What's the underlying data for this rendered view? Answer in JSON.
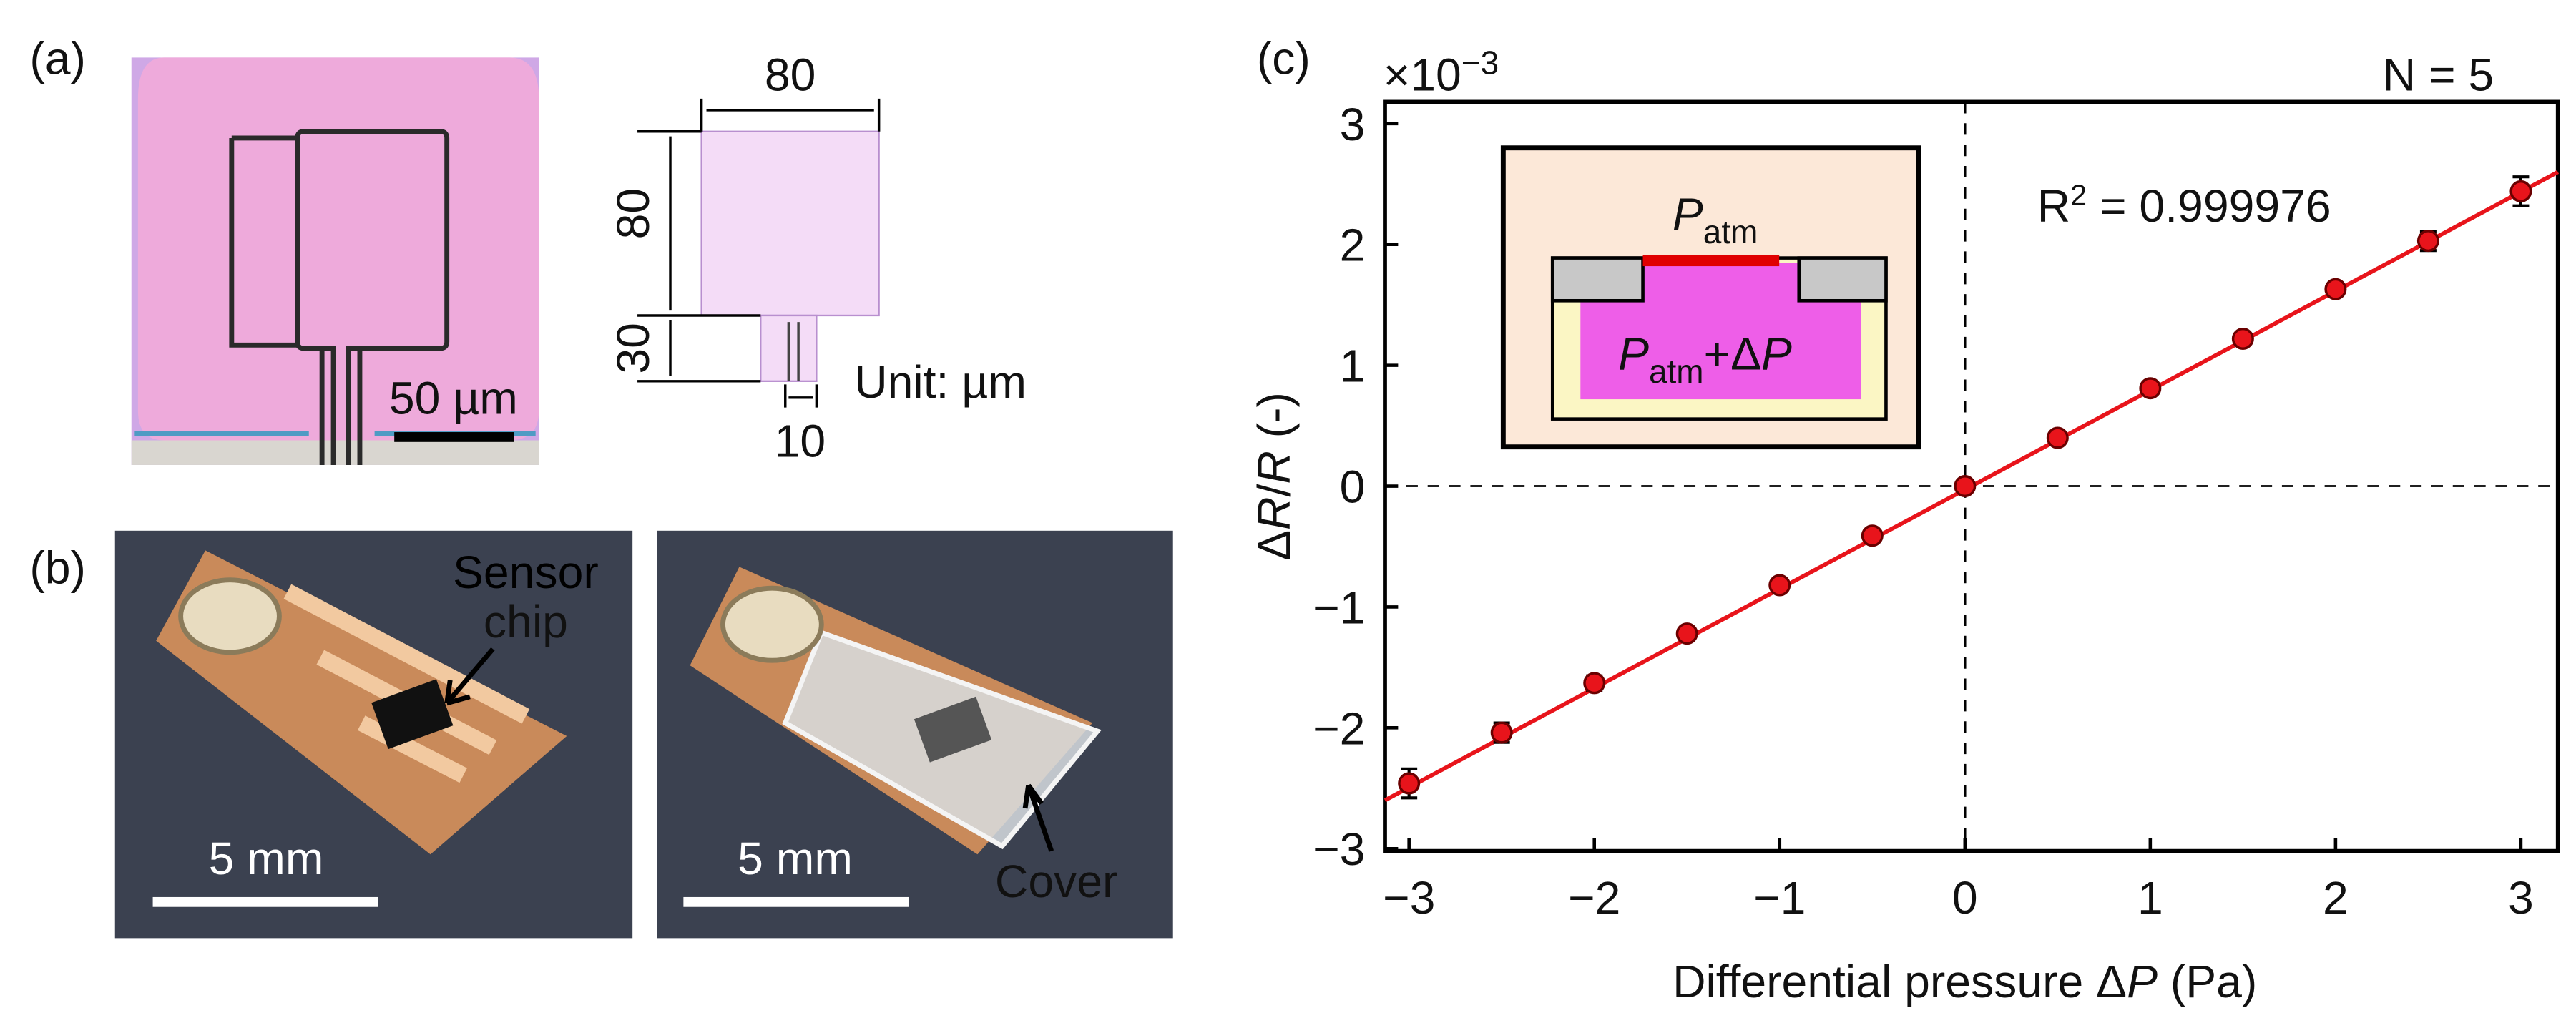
{
  "panel_a": {
    "label": "(a)",
    "scale_bar": "50 µm",
    "dim_width": "80",
    "dim_height": "80",
    "dim_stem": "30",
    "dim_slit": "10",
    "unit": "Unit: µm"
  },
  "panel_b": {
    "label": "(b)",
    "scale_bar_left": "5 mm",
    "scale_bar_right": "5 mm",
    "sensor_label": [
      "Sensor",
      "chip"
    ],
    "cover_label": "Cover"
  },
  "chart_data": {
    "type": "scatter",
    "panel_label": "(c)",
    "scale_label": [
      "×10",
      "−3"
    ],
    "annotation_n": "N = 5",
    "annotation_r2": [
      "R",
      "2",
      " = 0.999976"
    ],
    "inset_top": [
      "P",
      "atm"
    ],
    "inset_bottom": [
      "P",
      "atm",
      "+Δ",
      "P"
    ],
    "xlabel": [
      "Differential pressure Δ",
      "P",
      " (Pa)"
    ],
    "ylabel": [
      "Δ",
      "R",
      "/",
      "R",
      " (-)"
    ],
    "x": [
      -3,
      -2.5,
      -2,
      -1.5,
      -1,
      -0.5,
      0,
      0.5,
      1,
      1.5,
      2,
      2.5,
      3
    ],
    "series": [
      {
        "color": "#e8141b",
        "values": [
          -2.46,
          -2.04,
          -1.63,
          -1.22,
          -0.82,
          -0.41,
          0,
          0.4,
          0.81,
          1.22,
          1.63,
          2.03,
          2.44
        ],
        "errors": [
          0.12,
          0.08,
          0.06,
          0.04,
          0.04,
          0.03,
          0.03,
          0.03,
          0.03,
          0.04,
          0.05,
          0.08,
          0.12
        ]
      }
    ],
    "fit": {
      "color": "#e8141b",
      "x": [
        -3.13,
        3.2
      ],
      "y": [
        -2.6,
        2.6
      ]
    },
    "zero_lines": {
      "x": 0,
      "y": 0
    },
    "xlim": [
      -3.13,
      3.2
    ],
    "ylim": [
      -3.02,
      3.18
    ],
    "xticks": [
      {
        "value": -3,
        "label": "−3"
      },
      {
        "value": -2,
        "label": "−2"
      },
      {
        "value": -1,
        "label": "−1"
      },
      0,
      1,
      2,
      3
    ],
    "yticks": [
      {
        "value": -3,
        "label": "−3"
      },
      {
        "value": -2,
        "label": "−2"
      },
      {
        "value": -1,
        "label": "−1"
      },
      0,
      1,
      2,
      3
    ]
  }
}
